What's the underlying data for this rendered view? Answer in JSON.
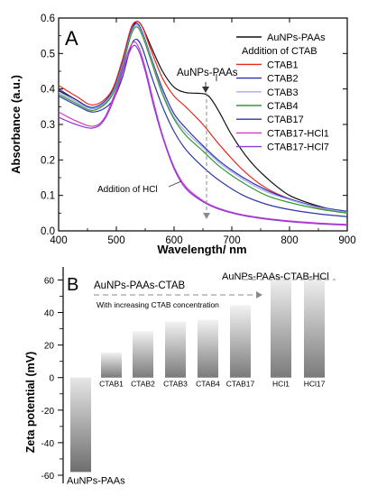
{
  "colors": {
    "AuNPs-PAAs": "#111111",
    "CTAB1": "#e8281c",
    "CTAB2": "#2a2fb8",
    "CTAB3": "#a8a8ea",
    "CTAB4": "#2f9a33",
    "CTAB17": "#2a36a6",
    "CTAB17-HCl1": "#d238c8",
    "CTAB17-HCl7": "#8b3bd9",
    "bar_light": "#e8e8e8",
    "bar_dark": "#777777",
    "arrow": "#8a8a8a"
  },
  "chart_data": [
    {
      "type": "line",
      "panel_label": "A",
      "xlabel": "Wavelength/ nm",
      "ylabel": "Absorbance (a.u.)",
      "xlim": [
        400,
        900
      ],
      "ylim": [
        0.0,
        0.6
      ],
      "xticks": [
        "400",
        "500",
        "600",
        "700",
        "800",
        "900"
      ],
      "yticks": [
        "0.0",
        "0.1",
        "0.2",
        "0.3",
        "0.4",
        "0.5",
        "0.6"
      ],
      "legend_placement": "top-right",
      "legend": [
        "AuNPs-PAAs",
        "Addition of CTAB",
        "CTAB1",
        "CTAB2",
        "CTAB3",
        "CTAB4",
        "CTAB17",
        "CTAB17-HCl1",
        "CTAB17-HCl7"
      ],
      "annotations": [
        "AuNPs-PAAs",
        "Addition of HCl"
      ],
      "series": [
        {
          "name": "AuNPs-PAAs",
          "x": [
            400,
            430,
            460,
            490,
            510,
            525,
            535,
            545,
            560,
            580,
            600,
            620,
            640,
            655,
            665,
            680,
            700,
            730,
            760,
            800,
            850,
            900
          ],
          "y": [
            0.395,
            0.37,
            0.345,
            0.38,
            0.47,
            0.56,
            0.59,
            0.575,
            0.52,
            0.45,
            0.405,
            0.39,
            0.388,
            0.385,
            0.37,
            0.33,
            0.27,
            0.2,
            0.15,
            0.1,
            0.07,
            0.05
          ]
        },
        {
          "name": "CTAB1",
          "x": [
            400,
            430,
            460,
            490,
            510,
            525,
            535,
            545,
            560,
            580,
            600,
            620,
            650,
            680,
            720,
            760,
            800,
            850,
            900
          ],
          "y": [
            0.41,
            0.38,
            0.355,
            0.39,
            0.48,
            0.57,
            0.59,
            0.575,
            0.51,
            0.43,
            0.38,
            0.35,
            0.3,
            0.24,
            0.17,
            0.12,
            0.09,
            0.065,
            0.05
          ]
        },
        {
          "name": "CTAB2",
          "x": [
            400,
            430,
            460,
            490,
            510,
            525,
            535,
            545,
            560,
            580,
            600,
            620,
            650,
            680,
            720,
            760,
            800,
            850,
            900
          ],
          "y": [
            0.4,
            0.37,
            0.348,
            0.385,
            0.47,
            0.56,
            0.585,
            0.56,
            0.49,
            0.4,
            0.33,
            0.29,
            0.24,
            0.195,
            0.15,
            0.115,
            0.09,
            0.068,
            0.055
          ]
        },
        {
          "name": "CTAB3",
          "x": [
            400,
            430,
            460,
            490,
            510,
            525,
            535,
            545,
            560,
            580,
            600,
            620,
            650,
            680,
            720,
            760,
            800,
            850,
            900
          ],
          "y": [
            0.39,
            0.365,
            0.345,
            0.38,
            0.465,
            0.555,
            0.58,
            0.555,
            0.485,
            0.39,
            0.32,
            0.28,
            0.235,
            0.19,
            0.145,
            0.11,
            0.088,
            0.066,
            0.052
          ]
        },
        {
          "name": "CTAB4",
          "x": [
            400,
            430,
            460,
            490,
            510,
            525,
            535,
            545,
            560,
            580,
            600,
            620,
            650,
            680,
            720,
            760,
            800,
            850,
            900
          ],
          "y": [
            0.385,
            0.36,
            0.34,
            0.375,
            0.46,
            0.55,
            0.575,
            0.55,
            0.48,
            0.385,
            0.315,
            0.27,
            0.225,
            0.18,
            0.135,
            0.1,
            0.08,
            0.062,
            0.05
          ]
        },
        {
          "name": "CTAB17",
          "x": [
            400,
            430,
            460,
            490,
            510,
            525,
            535,
            545,
            560,
            580,
            600,
            620,
            650,
            680,
            720,
            760,
            800,
            850,
            900
          ],
          "y": [
            0.38,
            0.355,
            0.335,
            0.36,
            0.43,
            0.52,
            0.54,
            0.515,
            0.44,
            0.35,
            0.28,
            0.23,
            0.18,
            0.14,
            0.1,
            0.075,
            0.06,
            0.048,
            0.04
          ]
        },
        {
          "name": "CTAB17-HCl1",
          "x": [
            400,
            430,
            460,
            480,
            500,
            515,
            528,
            538,
            550,
            565,
            580,
            600,
            620,
            650,
            680,
            720,
            760,
            800,
            850,
            900
          ],
          "y": [
            0.335,
            0.31,
            0.295,
            0.32,
            0.4,
            0.48,
            0.53,
            0.52,
            0.46,
            0.36,
            0.27,
            0.18,
            0.125,
            0.085,
            0.062,
            0.045,
            0.035,
            0.028,
            0.022,
            0.018
          ]
        },
        {
          "name": "CTAB17-HCl7",
          "x": [
            400,
            430,
            460,
            480,
            500,
            515,
            528,
            538,
            550,
            565,
            580,
            600,
            620,
            650,
            680,
            720,
            760,
            800,
            850,
            900
          ],
          "y": [
            0.32,
            0.3,
            0.29,
            0.315,
            0.39,
            0.47,
            0.52,
            0.51,
            0.45,
            0.35,
            0.265,
            0.175,
            0.12,
            0.082,
            0.06,
            0.043,
            0.033,
            0.026,
            0.02,
            0.016
          ]
        }
      ]
    },
    {
      "type": "bar",
      "panel_label": "B",
      "ylabel": "Zeta potential (mV)",
      "ylim": [
        -65,
        68
      ],
      "yticks": [
        "-60",
        "-40",
        "-20",
        "0",
        "20",
        "40",
        "60"
      ],
      "categories": [
        "AuNPs-PAAs",
        "CTAB1",
        "CTAB2",
        "CTAB3",
        "CTAB4",
        "CTAB17",
        "HCl1",
        "HCl17"
      ],
      "values": [
        -58,
        15.5,
        28.5,
        34.5,
        35.5,
        44.5,
        62.5,
        62.5
      ],
      "annotations": [
        "AuNPs-PAAs-CTAB",
        "With increasing CTAB concentration",
        "AuNPs-PAAs-CTAB-HCl"
      ]
    }
  ]
}
